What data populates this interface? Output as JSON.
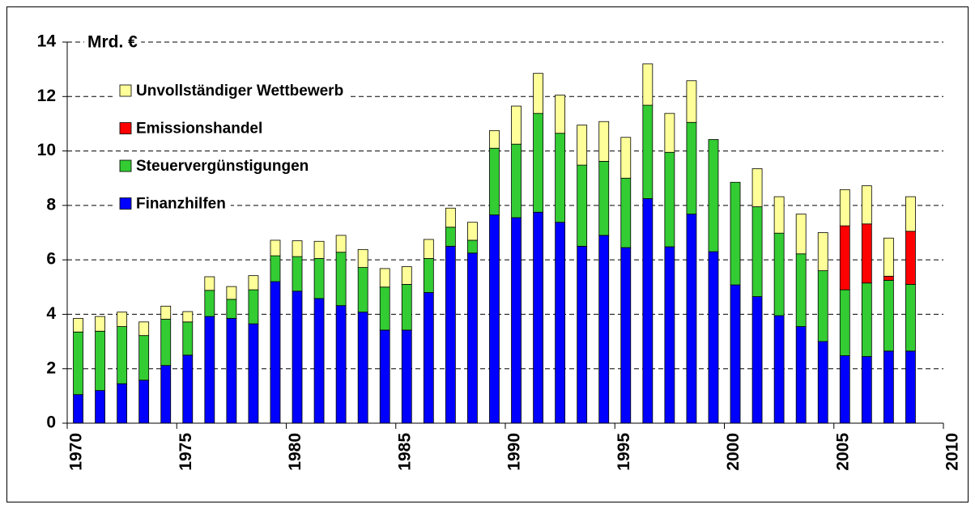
{
  "chart_data": {
    "type": "stacked_bar",
    "y_label": "Mrd. €",
    "x": [
      1970,
      1971,
      1972,
      1973,
      1974,
      1975,
      1976,
      1977,
      1978,
      1979,
      1980,
      1981,
      1982,
      1983,
      1984,
      1985,
      1986,
      1987,
      1988,
      1989,
      1990,
      1991,
      1992,
      1993,
      1994,
      1995,
      1996,
      1997,
      1998,
      1999,
      2000,
      2001,
      2002,
      2003,
      2004,
      2005,
      2006,
      2007,
      2008
    ],
    "series": [
      {
        "name": "Finanzhilfen",
        "color": "#0000ff",
        "values": [
          1.05,
          1.2,
          1.45,
          1.58,
          2.12,
          2.5,
          3.92,
          3.85,
          3.65,
          5.2,
          4.85,
          4.58,
          4.32,
          4.08,
          3.42,
          3.42,
          4.8,
          6.5,
          6.25,
          7.65,
          7.55,
          7.75,
          7.38,
          6.5,
          6.9,
          6.45,
          8.25,
          6.48,
          7.68,
          6.3,
          5.08,
          4.65,
          3.95,
          3.55,
          3.0,
          2.48,
          2.45,
          2.65,
          2.65
        ]
      },
      {
        "name": "Steuervergünstigungen",
        "color": "#33cc33",
        "values": [
          2.3,
          2.18,
          2.1,
          1.64,
          1.7,
          1.22,
          0.96,
          0.7,
          1.25,
          0.95,
          1.27,
          1.47,
          1.96,
          1.64,
          1.58,
          1.68,
          1.25,
          0.7,
          0.47,
          2.45,
          2.7,
          3.63,
          3.27,
          2.98,
          2.72,
          2.55,
          3.43,
          3.47,
          3.37,
          4.12,
          3.77,
          3.3,
          3.03,
          2.67,
          2.6,
          2.42,
          2.7,
          2.6,
          2.45
        ]
      },
      {
        "name": "Emissionshandel",
        "color": "#ff0000",
        "values": [
          0,
          0,
          0,
          0,
          0,
          0,
          0,
          0,
          0,
          0,
          0,
          0,
          0,
          0,
          0,
          0,
          0,
          0,
          0,
          0,
          0,
          0,
          0,
          0,
          0,
          0,
          0,
          0,
          0,
          0,
          0,
          0,
          0,
          0,
          0,
          2.35,
          2.17,
          0.15,
          1.95
        ]
      },
      {
        "name": "Unvollständiger Wettbewerb",
        "color": "#ffff99",
        "values": [
          0.5,
          0.54,
          0.53,
          0.5,
          0.48,
          0.38,
          0.5,
          0.47,
          0.52,
          0.57,
          0.58,
          0.63,
          0.62,
          0.66,
          0.68,
          0.65,
          0.7,
          0.7,
          0.66,
          0.65,
          1.4,
          1.47,
          1.4,
          1.47,
          1.46,
          1.5,
          1.52,
          1.43,
          1.53,
          0,
          0,
          1.4,
          1.34,
          1.46,
          1.4,
          1.33,
          1.4,
          1.4,
          1.27
        ]
      }
    ],
    "xlim": [
      1970,
      2010
    ],
    "xticks": [
      1970,
      1975,
      1980,
      1985,
      1990,
      1995,
      2000,
      2005,
      2010
    ],
    "ylim": [
      0,
      14
    ],
    "yticks": [
      0,
      2,
      4,
      6,
      8,
      10,
      12,
      14
    ],
    "grid": true,
    "legend": "upper left"
  }
}
